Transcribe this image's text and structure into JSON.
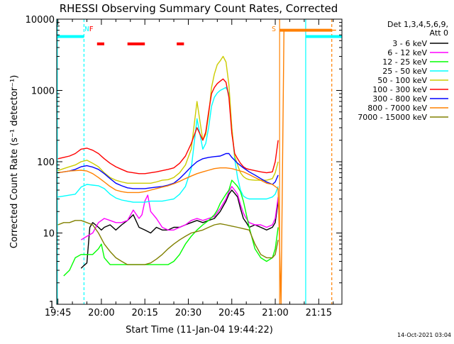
{
  "chart_data": {
    "type": "line",
    "title": "RHESSI Observing Summary Count Rates, Corrected",
    "xlabel": "Start Time (11-Jan-04 19:44:22)",
    "ylabel": "Corrected Count Rate (s⁻¹ detector⁻¹)",
    "xlim": [
      -0.4,
      98
    ],
    "ylim": [
      1,
      10000
    ],
    "yscale": "log",
    "x_tick_labels": [
      "19:45",
      "20:00",
      "20:15",
      "20:30",
      "20:45",
      "21:00",
      "21:15"
    ],
    "x_tick_minutes": [
      0,
      15,
      30,
      45,
      60,
      75,
      90
    ],
    "y_tick_labels": [
      "1",
      "10",
      "100",
      "1000",
      "10000"
    ],
    "y_tick_values": [
      1,
      10,
      100,
      1000,
      10000
    ],
    "legend_header": [
      "Det 1,3,4,5,6,9,",
      "Att 0"
    ],
    "legend_placement": "top-right, outside plot",
    "series": [
      {
        "name": "3 - 6 keV",
        "color": "#000000",
        "x": [
          8,
          9,
          10,
          11,
          12,
          13,
          14,
          15,
          16,
          18,
          20,
          22,
          24,
          26,
          28,
          30,
          32,
          34,
          36,
          38,
          40,
          42,
          44,
          46,
          48,
          50,
          52,
          54,
          56,
          58,
          59,
          60,
          61,
          62,
          63,
          64,
          65,
          66,
          68,
          70,
          72,
          74,
          75,
          76
        ],
        "y": [
          3.2,
          3.5,
          3.8,
          12,
          14,
          13,
          12,
          11,
          12,
          13,
          11,
          13,
          15,
          18,
          12,
          11,
          10,
          12,
          11,
          11,
          12,
          12,
          13,
          14,
          15,
          14,
          15,
          16,
          20,
          28,
          35,
          40,
          36,
          32,
          22,
          16,
          14,
          12,
          13,
          12,
          11,
          12,
          14,
          28
        ]
      },
      {
        "name": "6 - 12 keV",
        "color": "#ff00ff",
        "x": [
          8,
          10,
          12,
          14,
          16,
          18,
          20,
          22,
          24,
          26,
          28,
          29,
          30,
          31,
          32,
          34,
          36,
          38,
          40,
          42,
          44,
          46,
          48,
          50,
          52,
          54,
          56,
          58,
          59,
          60,
          61,
          62,
          63,
          64,
          65,
          66,
          68,
          70,
          72,
          74,
          75,
          76
        ],
        "y": [
          8,
          9,
          10,
          14,
          16,
          15,
          14,
          14,
          15,
          21,
          16,
          18,
          28,
          34,
          20,
          16,
          12,
          11,
          11,
          12,
          13,
          15,
          16,
          15,
          16,
          17,
          22,
          30,
          38,
          45,
          40,
          35,
          25,
          19,
          16,
          14,
          13,
          13,
          12,
          13,
          16,
          32
        ]
      },
      {
        "name": "12 - 25 keV",
        "color": "#00ff00",
        "x": [
          2,
          4,
          6,
          8,
          10,
          12,
          14,
          15,
          16,
          18,
          20,
          22,
          24,
          26,
          28,
          30,
          32,
          34,
          36,
          38,
          40,
          42,
          44,
          46,
          48,
          50,
          52,
          54,
          55,
          56,
          58,
          59,
          60,
          61,
          62,
          63,
          64,
          66,
          68,
          70,
          72,
          74,
          75,
          76
        ],
        "y": [
          2.5,
          3,
          4.5,
          5,
          5,
          5,
          6,
          7,
          4.5,
          3.6,
          3.6,
          3.6,
          3.6,
          3.6,
          3.6,
          3.6,
          3.6,
          3.6,
          3.6,
          3.6,
          4,
          5,
          7,
          9,
          11,
          13,
          15,
          18,
          21,
          26,
          35,
          40,
          55,
          50,
          45,
          38,
          28,
          12,
          6,
          4.5,
          4,
          4.5,
          6,
          12
        ]
      },
      {
        "name": "25 - 50 keV",
        "color": "#00ffff",
        "x": [
          0,
          2,
          4,
          6,
          8,
          10,
          12,
          14,
          16,
          18,
          20,
          22,
          24,
          26,
          28,
          30,
          32,
          34,
          36,
          38,
          40,
          42,
          44,
          46,
          48,
          50,
          51,
          52,
          53,
          54,
          55,
          56,
          57,
          58,
          59,
          60,
          61,
          62,
          63,
          64,
          65,
          66,
          68,
          70,
          72,
          74,
          75,
          76
        ],
        "y": [
          32,
          33,
          34,
          35,
          44,
          48,
          47,
          46,
          42,
          35,
          31,
          29,
          28,
          27,
          27,
          27,
          28,
          28,
          28,
          29,
          30,
          35,
          45,
          80,
          400,
          150,
          180,
          300,
          600,
          800,
          920,
          1000,
          1050,
          1100,
          900,
          300,
          110,
          60,
          40,
          33,
          31,
          30,
          30,
          30,
          30,
          32,
          35,
          45
        ]
      },
      {
        "name": "50 - 100 keV",
        "color": "#cccc00",
        "x": [
          0,
          2,
          4,
          6,
          8,
          10,
          12,
          14,
          16,
          18,
          20,
          22,
          24,
          26,
          28,
          30,
          32,
          34,
          36,
          38,
          40,
          42,
          44,
          46,
          48,
          50,
          51,
          52,
          53,
          54,
          55,
          56,
          57,
          58,
          59,
          60,
          61,
          62,
          63,
          64,
          65,
          66,
          68,
          70,
          72,
          74,
          75,
          76
        ],
        "y": [
          75,
          80,
          85,
          90,
          100,
          105,
          95,
          85,
          70,
          60,
          55,
          52,
          50,
          50,
          50,
          50,
          50,
          52,
          55,
          56,
          60,
          70,
          90,
          150,
          700,
          200,
          240,
          450,
          1100,
          1700,
          2300,
          2600,
          3000,
          2500,
          1200,
          300,
          120,
          90,
          70,
          62,
          58,
          56,
          55,
          55,
          55,
          58,
          70,
          100
        ]
      },
      {
        "name": "100 - 300 keV",
        "color": "#ff0000",
        "x": [
          0,
          2,
          4,
          6,
          8,
          10,
          12,
          14,
          16,
          18,
          20,
          22,
          24,
          26,
          28,
          30,
          32,
          34,
          36,
          38,
          40,
          42,
          44,
          46,
          48,
          50,
          51,
          52,
          53,
          54,
          55,
          56,
          57,
          58,
          59,
          60,
          61,
          62,
          63,
          64,
          65,
          66,
          68,
          70,
          72,
          74,
          75,
          76
        ],
        "y": [
          110,
          115,
          120,
          130,
          150,
          155,
          145,
          130,
          110,
          95,
          85,
          78,
          72,
          70,
          68,
          68,
          70,
          72,
          75,
          78,
          82,
          95,
          120,
          180,
          300,
          200,
          260,
          500,
          900,
          1100,
          1250,
          1350,
          1450,
          1300,
          800,
          250,
          130,
          110,
          95,
          85,
          80,
          78,
          75,
          72,
          70,
          72,
          100,
          200
        ]
      },
      {
        "name": "300 - 800 keV",
        "color": "#0000ff",
        "x": [
          0,
          2,
          4,
          6,
          8,
          10,
          12,
          14,
          16,
          18,
          20,
          22,
          24,
          26,
          28,
          30,
          32,
          34,
          36,
          38,
          40,
          42,
          44,
          46,
          48,
          50,
          52,
          54,
          56,
          57,
          58,
          59,
          60,
          61,
          62,
          64,
          66,
          68,
          70,
          72,
          74,
          75,
          76
        ],
        "y": [
          70,
          72,
          74,
          78,
          85,
          88,
          84,
          78,
          68,
          58,
          50,
          46,
          43,
          42,
          42,
          42,
          43,
          44,
          45,
          47,
          50,
          58,
          70,
          85,
          100,
          110,
          115,
          118,
          120,
          125,
          130,
          130,
          115,
          105,
          95,
          82,
          72,
          65,
          58,
          52,
          48,
          52,
          65
        ]
      },
      {
        "name": "800 - 7000 keV",
        "color": "#ff8000",
        "x": [
          0,
          2,
          4,
          6,
          8,
          10,
          12,
          14,
          16,
          18,
          20,
          22,
          24,
          26,
          28,
          30,
          32,
          34,
          36,
          38,
          40,
          42,
          44,
          46,
          48,
          50,
          52,
          54,
          56,
          58,
          60,
          62,
          64,
          66,
          68,
          70,
          72,
          74,
          75,
          76,
          77,
          78,
          79,
          80,
          82,
          84,
          86,
          88,
          90,
          92,
          94,
          96
        ],
        "y": [
          70,
          72,
          74,
          75,
          76,
          74,
          68,
          60,
          52,
          45,
          40,
          38,
          37,
          37,
          37,
          38,
          40,
          42,
          44,
          46,
          49,
          53,
          58,
          63,
          68,
          72,
          76,
          80,
          82,
          82,
          80,
          76,
          72,
          66,
          60,
          55,
          50,
          48,
          45,
          42,
          1,
          7000,
          7000,
          7000,
          7000,
          7000,
          7000,
          7000,
          7000,
          7000,
          7000,
          7000
        ]
      },
      {
        "name": "7000 - 15000 keV",
        "color": "#808000",
        "x": [
          0,
          2,
          4,
          6,
          8,
          10,
          12,
          14,
          16,
          18,
          20,
          22,
          24,
          26,
          28,
          30,
          32,
          34,
          36,
          38,
          40,
          42,
          44,
          46,
          48,
          50,
          52,
          54,
          56,
          58,
          60,
          62,
          64,
          66,
          68,
          70,
          72,
          74,
          75,
          76
        ],
        "y": [
          13,
          14,
          14,
          15,
          15,
          14,
          13,
          10,
          7,
          5.5,
          4.5,
          4,
          3.6,
          3.6,
          3.6,
          3.6,
          3.8,
          4.3,
          5,
          6,
          7,
          8,
          9,
          10,
          10.5,
          11,
          12,
          13,
          13.5,
          13,
          12.5,
          12,
          11.5,
          11,
          7,
          5,
          4.5,
          4.5,
          5,
          8
        ]
      }
    ],
    "annotations": [
      {
        "text": "N",
        "color": "#00ffff",
        "x": 10
      },
      {
        "text": "F",
        "color": "#ff0000",
        "x": 11.5
      },
      {
        "text": "S",
        "color": "#ff8000",
        "x": 74.5
      }
    ],
    "intervals": [
      {
        "name": "night",
        "color": "#00ffff",
        "y": 5700,
        "ranges": [
          [
            -0.4,
            9
          ],
          [
            85.5,
            98
          ]
        ]
      },
      {
        "name": "flare",
        "color": "#ff0000",
        "y": 4500,
        "ranges": [
          [
            13.5,
            16
          ],
          [
            24,
            30
          ],
          [
            41,
            43.5
          ]
        ]
      },
      {
        "name": "saa",
        "color": "#ff8000",
        "y": 7000,
        "ranges": [
          [
            76.5,
            94.5
          ]
        ]
      }
    ],
    "markers": [
      {
        "kind": "solid",
        "color": "#00ffff",
        "x": -0.2
      },
      {
        "kind": "dashed",
        "color": "#00ffff",
        "x": 9
      },
      {
        "kind": "solid",
        "color": "#ff8000",
        "x": 76.5
      },
      {
        "kind": "solid",
        "color": "#00ffff",
        "x": 85.5
      },
      {
        "kind": "dashed",
        "color": "#ff8000",
        "x": 94.5
      }
    ],
    "grid": false
  },
  "footer": {
    "timestamp": "14-Oct-2021 03:04"
  }
}
